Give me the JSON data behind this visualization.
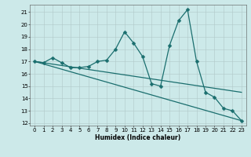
{
  "title": "",
  "xlabel": "Humidex (Indice chaleur)",
  "bg_color": "#cce9e9",
  "grid_color": "#b0c8c8",
  "line_color": "#1a6e6e",
  "xlim": [
    -0.5,
    23.5
  ],
  "ylim": [
    11.8,
    21.6
  ],
  "yticks": [
    12,
    13,
    14,
    15,
    16,
    17,
    18,
    19,
    20,
    21
  ],
  "xticks": [
    0,
    1,
    2,
    3,
    4,
    5,
    6,
    7,
    8,
    9,
    10,
    11,
    12,
    13,
    14,
    15,
    16,
    17,
    18,
    19,
    20,
    21,
    22,
    23
  ],
  "series1_x": [
    0,
    1,
    2,
    3,
    4,
    5,
    6,
    7,
    8,
    9,
    10,
    11,
    12,
    13,
    14,
    15,
    16,
    17,
    18,
    19,
    20,
    21,
    22,
    23
  ],
  "series1_y": [
    17.0,
    16.9,
    17.3,
    16.9,
    16.5,
    16.5,
    16.6,
    17.0,
    17.1,
    18.0,
    19.4,
    18.5,
    17.4,
    15.2,
    15.0,
    18.3,
    20.3,
    21.2,
    17.0,
    14.5,
    14.1,
    13.2,
    13.0,
    12.2
  ],
  "series2_x": [
    0,
    23
  ],
  "series2_y": [
    17.0,
    12.2
  ],
  "series3_x": [
    0,
    23
  ],
  "series3_y": [
    17.0,
    14.5
  ],
  "marker_size": 2.5,
  "line_width": 0.9,
  "tick_fontsize": 5.0,
  "xlabel_fontsize": 5.5
}
